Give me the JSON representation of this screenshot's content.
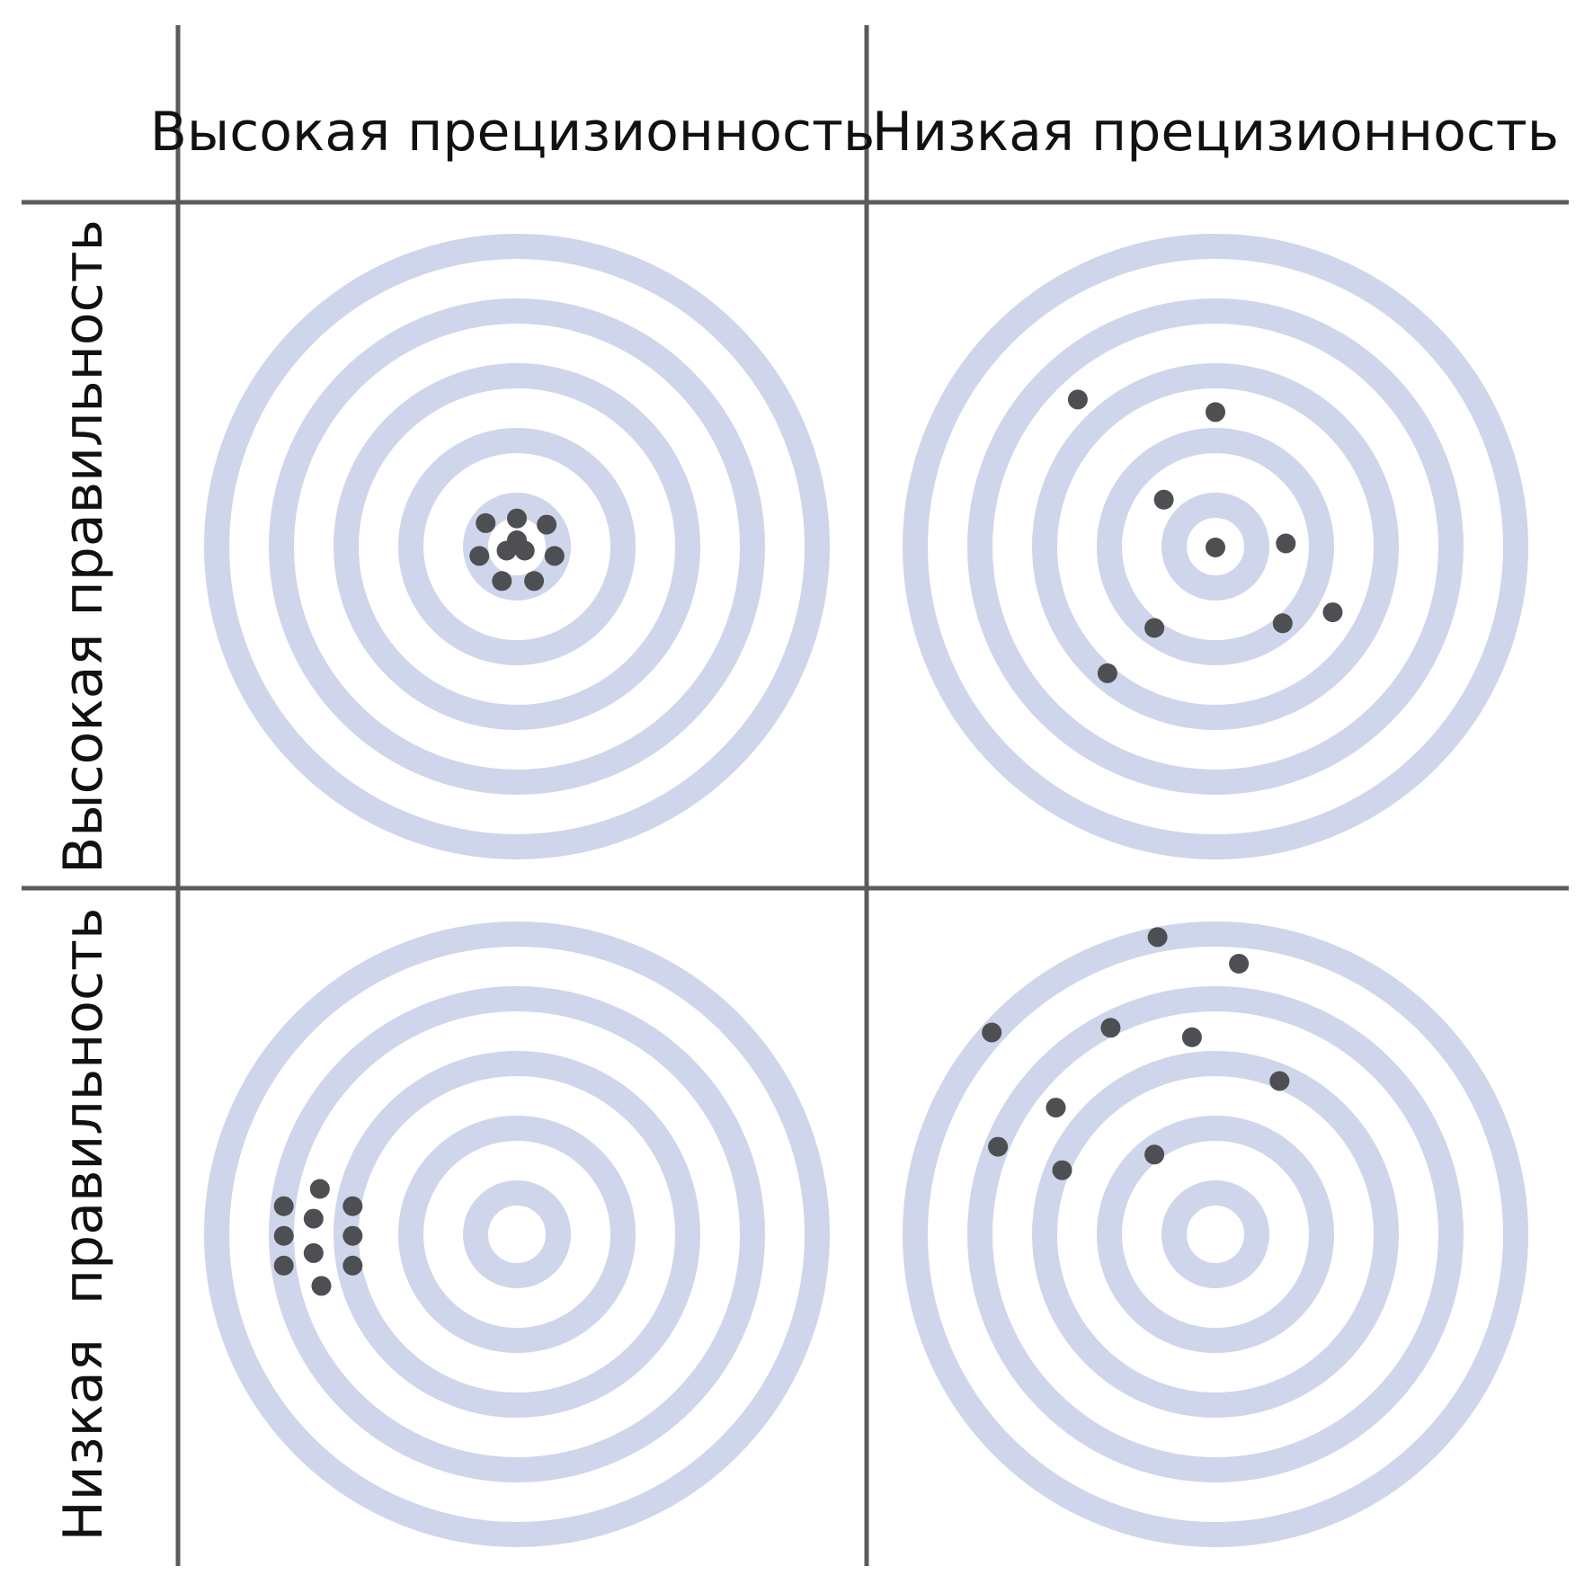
{
  "columns": [
    {
      "label": "Высокая прецизионность"
    },
    {
      "label": "Низкая прецизионность"
    }
  ],
  "rows": [
    {
      "label": "Высокая правильность"
    },
    {
      "label": "Низкая  правильность"
    }
  ],
  "colors": {
    "ring": "#cfd5ea",
    "dot": "#4d4f52",
    "grid_line": "#5a5b5e",
    "background": "#ffffff"
  },
  "targets": [
    {
      "id": "high-accuracy-high-precision",
      "shots": [
        [
          0,
          -0.09
        ],
        [
          -0.1,
          -0.075
        ],
        [
          0.095,
          -0.07
        ],
        [
          -0.12,
          0.03
        ],
        [
          0.12,
          0.03
        ],
        [
          -0.048,
          0.11
        ],
        [
          0.055,
          0.11
        ],
        [
          0,
          -0.02
        ],
        [
          -0.033,
          0.013
        ],
        [
          0.025,
          0.013
        ]
      ]
    },
    {
      "id": "high-accuracy-low-precision",
      "shots": [
        [
          -0.44,
          -0.47
        ],
        [
          0,
          -0.43
        ],
        [
          -0.165,
          -0.15
        ],
        [
          0.225,
          -0.01
        ],
        [
          0,
          0.003
        ],
        [
          -0.195,
          0.26
        ],
        [
          0.215,
          0.245
        ],
        [
          0.375,
          0.21
        ],
        [
          -0.345,
          0.405
        ]
      ]
    },
    {
      "id": "low-accuracy-high-precision",
      "shots": [
        [
          -0.63,
          -0.145
        ],
        [
          -0.745,
          -0.09
        ],
        [
          -0.525,
          -0.09
        ],
        [
          -0.65,
          -0.05
        ],
        [
          -0.745,
          0.005
        ],
        [
          -0.525,
          0.005
        ],
        [
          -0.65,
          0.06
        ],
        [
          -0.745,
          0.1
        ],
        [
          -0.525,
          0.1
        ],
        [
          -0.625,
          0.165
        ]
      ]
    },
    {
      "id": "low-accuracy-low-precision",
      "shots": [
        [
          -0.185,
          -0.95
        ],
        [
          0.075,
          -0.865
        ],
        [
          -0.715,
          -0.645
        ],
        [
          -0.335,
          -0.66
        ],
        [
          -0.075,
          -0.63
        ],
        [
          0.205,
          -0.49
        ],
        [
          -0.51,
          -0.405
        ],
        [
          -0.695,
          -0.28
        ],
        [
          -0.49,
          -0.205
        ],
        [
          -0.195,
          -0.255
        ]
      ]
    }
  ]
}
